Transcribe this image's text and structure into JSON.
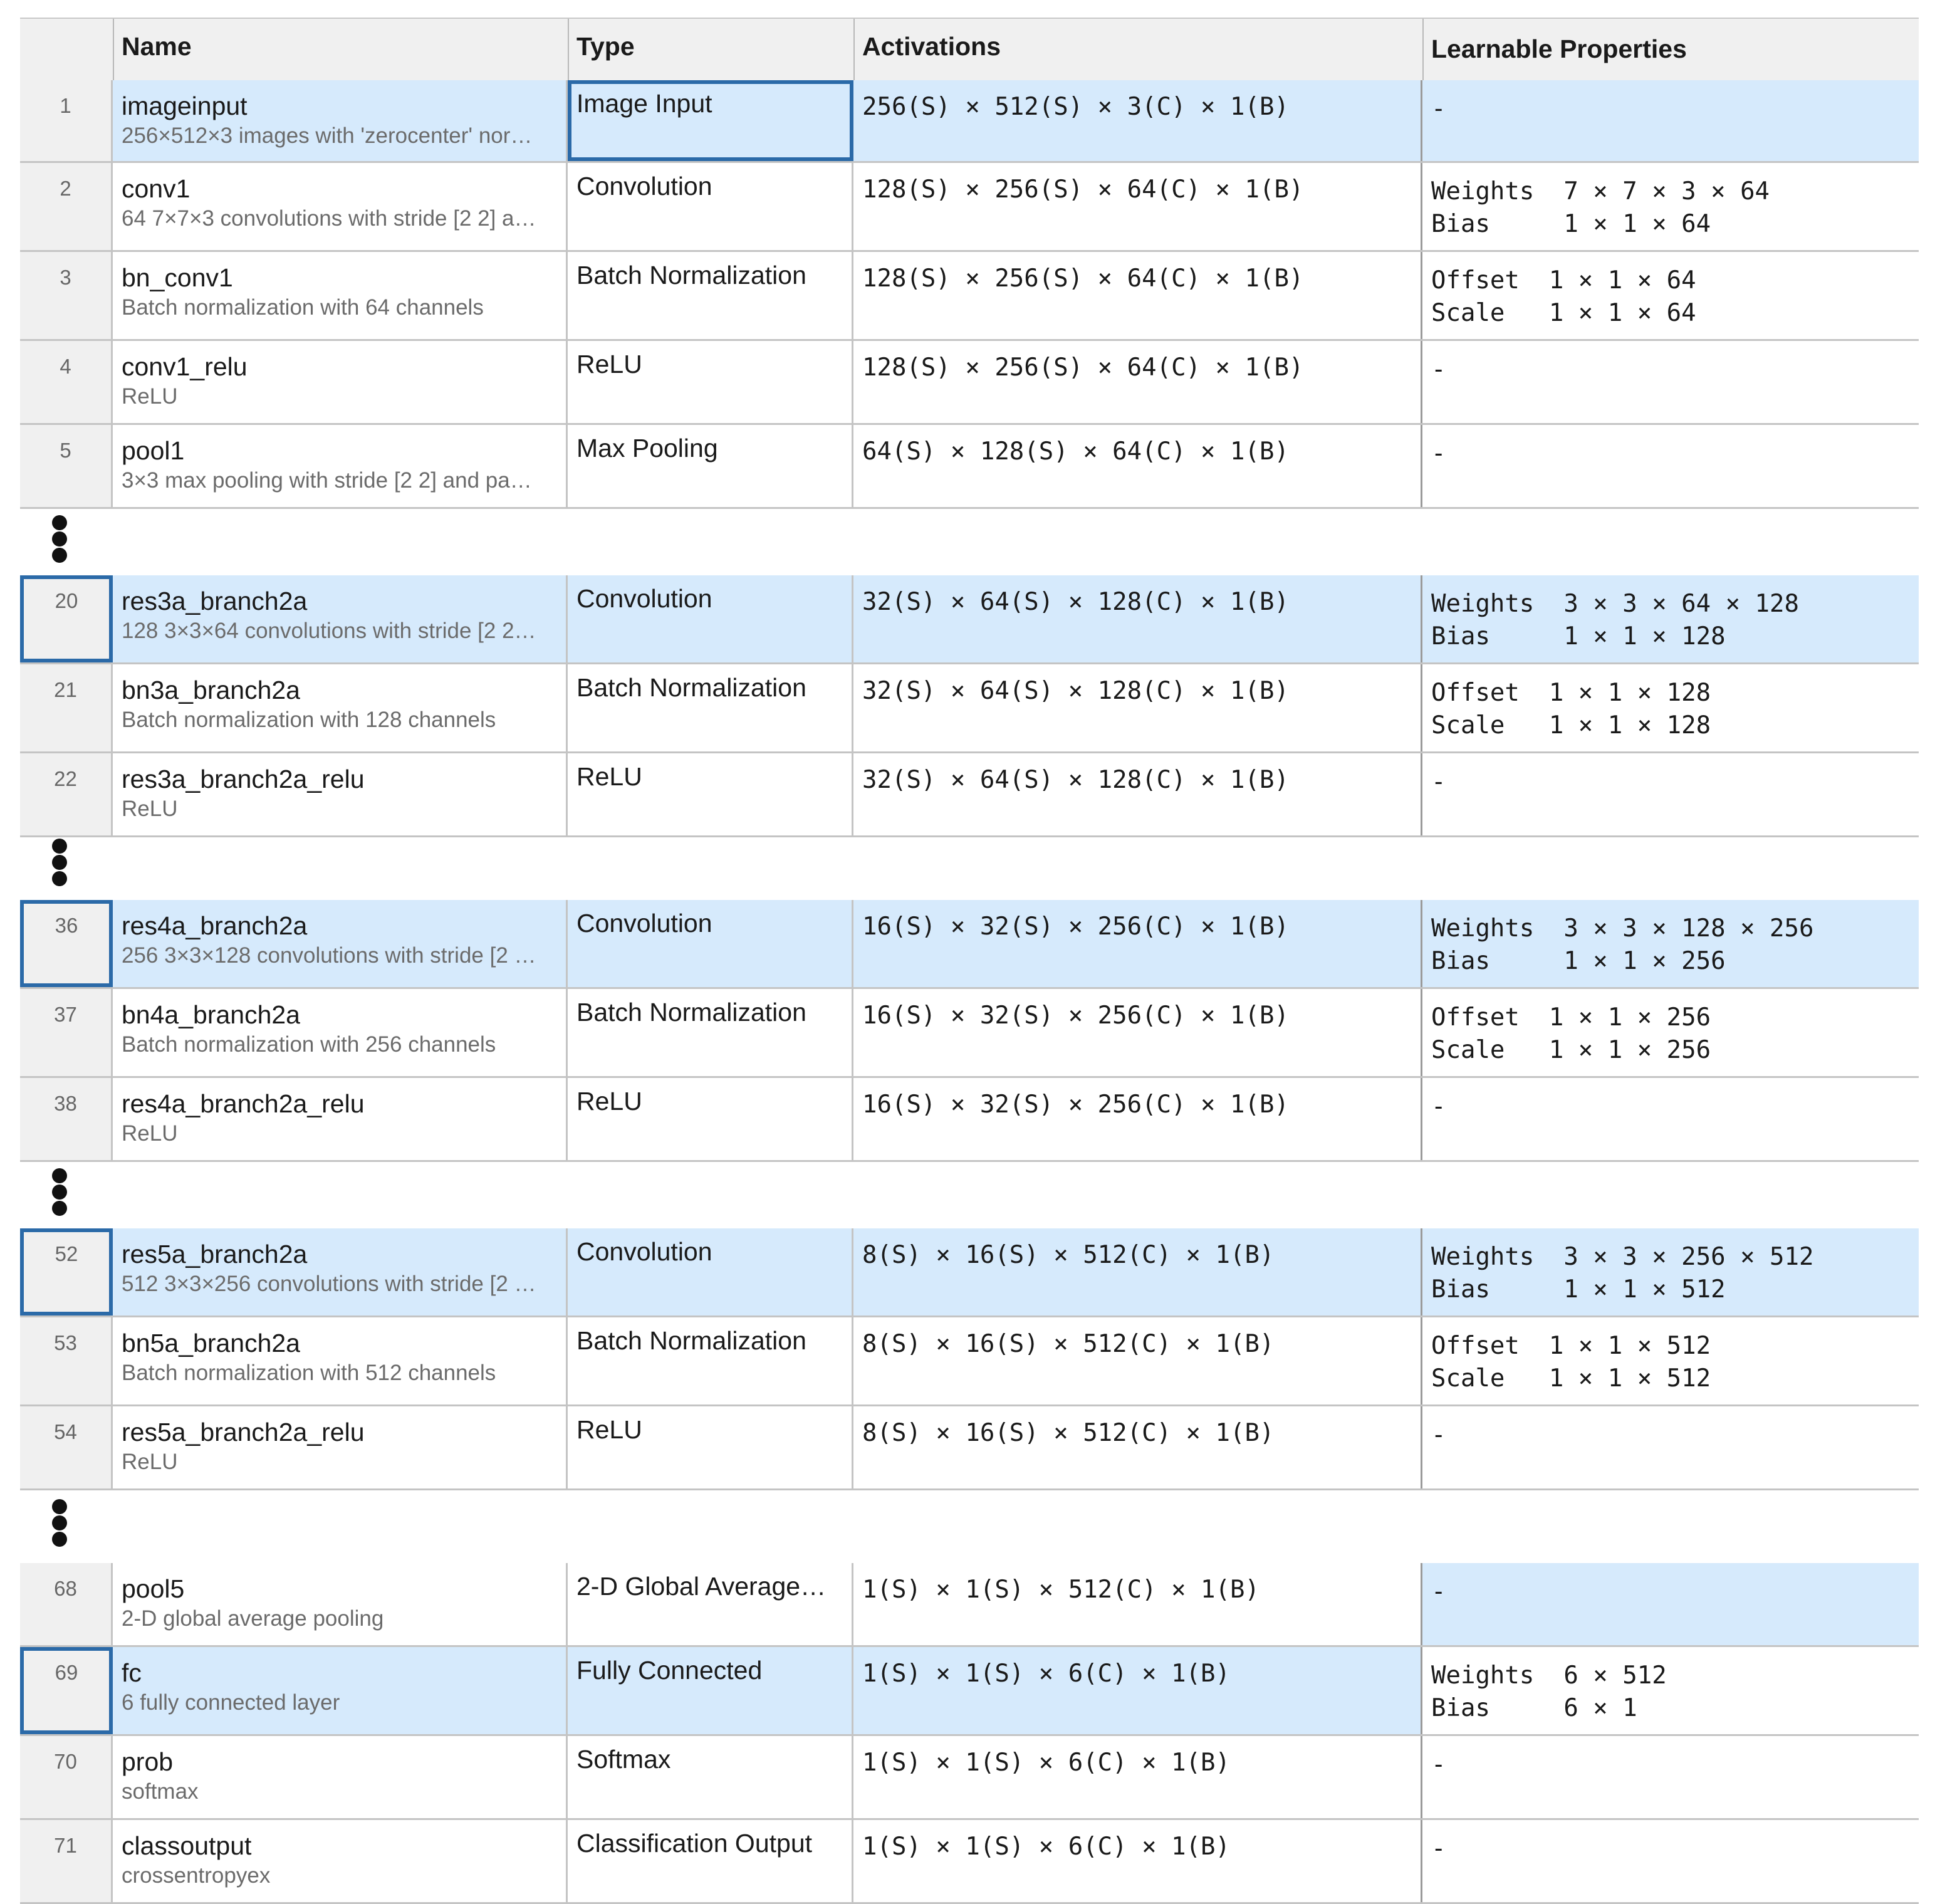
{
  "headers": {
    "name": "Name",
    "type": "Type",
    "activations": "Activations",
    "learnable": "Learnable Properties"
  },
  "groups": [
    [
      {
        "num": "1",
        "name": "imageinput",
        "desc": "256×512×3 images with 'zerocenter' nor…",
        "type": "Image Input",
        "act": "256(S) × 512(S) × 3(C) × 1(B)",
        "learn1": "-",
        "learn2": "",
        "selected": true,
        "focus": "type"
      },
      {
        "num": "2",
        "name": "conv1",
        "desc": "64 7×7×3 convolutions with stride [2 2] a…",
        "type": "Convolution",
        "act": "128(S) × 256(S) × 64(C) × 1(B)",
        "learn1": "Weights  7 × 7 × 3 × 64",
        "learn2": "Bias     1 × 1 × 64"
      },
      {
        "num": "3",
        "name": "bn_conv1",
        "desc": "Batch normalization with 64 channels",
        "type": "Batch Normalization",
        "act": "128(S) × 256(S) × 64(C) × 1(B)",
        "learn1": "Offset  1 × 1 × 64",
        "learn2": "Scale   1 × 1 × 64"
      },
      {
        "num": "4",
        "name": "conv1_relu",
        "desc": "ReLU",
        "type": "ReLU",
        "act": "128(S) × 256(S) × 64(C) × 1(B)",
        "learn1": "-",
        "learn2": ""
      },
      {
        "num": "5",
        "name": "pool1",
        "desc": "3×3 max pooling with stride [2 2] and pa…",
        "type": "Max Pooling",
        "act": "64(S) × 128(S) × 64(C) × 1(B)",
        "learn1": "-",
        "learn2": ""
      }
    ],
    [
      {
        "num": "20",
        "name": "res3a_branch2a",
        "desc": "128 3×3×64 convolutions with stride [2 2…",
        "type": "Convolution",
        "act": "32(S) × 64(S) × 128(C) × 1(B)",
        "learn1": "Weights  3 × 3 × 64 × 128",
        "learn2": "Bias     1 × 1 × 128",
        "selected": true,
        "focus": "num"
      },
      {
        "num": "21",
        "name": "bn3a_branch2a",
        "desc": "Batch normalization with 128 channels",
        "type": "Batch Normalization",
        "act": "32(S) × 64(S) × 128(C) × 1(B)",
        "learn1": "Offset  1 × 1 × 128",
        "learn2": "Scale   1 × 1 × 128"
      },
      {
        "num": "22",
        "name": "res3a_branch2a_relu",
        "desc": "ReLU",
        "type": "ReLU",
        "act": "32(S) × 64(S) × 128(C) × 1(B)",
        "learn1": "-",
        "learn2": ""
      }
    ],
    [
      {
        "num": "36",
        "name": "res4a_branch2a",
        "desc": "256 3×3×128 convolutions with stride [2 …",
        "type": "Convolution",
        "act": "16(S) × 32(S) × 256(C) × 1(B)",
        "learn1": "Weights  3 × 3 × 128 × 256",
        "learn2": "Bias     1 × 1 × 256",
        "selected": true,
        "focus": "num"
      },
      {
        "num": "37",
        "name": "bn4a_branch2a",
        "desc": "Batch normalization with 256 channels",
        "type": "Batch Normalization",
        "act": "16(S) × 32(S) × 256(C) × 1(B)",
        "learn1": "Offset  1 × 1 × 256",
        "learn2": "Scale   1 × 1 × 256"
      },
      {
        "num": "38",
        "name": "res4a_branch2a_relu",
        "desc": "ReLU",
        "type": "ReLU",
        "act": "16(S) × 32(S) × 256(C) × 1(B)",
        "learn1": "-",
        "learn2": ""
      }
    ],
    [
      {
        "num": "52",
        "name": "res5a_branch2a",
        "desc": "512 3×3×256 convolutions with stride [2 …",
        "type": "Convolution",
        "act": "8(S) × 16(S) × 512(C) × 1(B)",
        "learn1": "Weights  3 × 3 × 256 × 512",
        "learn2": "Bias     1 × 1 × 512",
        "selected": true,
        "focus": "num"
      },
      {
        "num": "53",
        "name": "bn5a_branch2a",
        "desc": "Batch normalization with 512 channels",
        "type": "Batch Normalization",
        "act": "8(S) × 16(S) × 512(C) × 1(B)",
        "learn1": "Offset  1 × 1 × 512",
        "learn2": "Scale   1 × 1 × 512"
      },
      {
        "num": "54",
        "name": "res5a_branch2a_relu",
        "desc": "ReLU",
        "type": "ReLU",
        "act": "8(S) × 16(S) × 512(C) × 1(B)",
        "learn1": "-",
        "learn2": ""
      }
    ],
    [
      {
        "num": "68",
        "name": "pool5",
        "desc": "2-D global average pooling",
        "type": "2-D Global Average…",
        "act": "1(S) × 1(S) × 512(C) × 1(B)",
        "learn1": "-",
        "learn2": "",
        "learnSelected": true
      },
      {
        "num": "69",
        "name": "fc",
        "desc": "6 fully connected layer",
        "type": "Fully Connected",
        "act": "1(S) × 1(S) × 6(C) × 1(B)",
        "learn1": "Weights  6 × 512",
        "learn2": "Bias     6 × 1",
        "selected": true,
        "focus": "num",
        "learnPlain": true
      },
      {
        "num": "70",
        "name": "prob",
        "desc": "softmax",
        "type": "Softmax",
        "act": "1(S) × 1(S) × 6(C) × 1(B)",
        "learn1": "-",
        "learn2": ""
      },
      {
        "num": "71",
        "name": "classoutput",
        "desc": "crossentropyex",
        "type": "Classification Output",
        "act": "1(S) × 1(S) × 6(C) × 1(B)",
        "learn1": "-",
        "learn2": ""
      }
    ]
  ],
  "colors": {
    "selection": "#d6eafc",
    "focus_border": "#2b6aa8",
    "header_bg": "#f0f0f0"
  },
  "icons": {
    "ellipsis": "vertical-ellipsis-icon"
  }
}
